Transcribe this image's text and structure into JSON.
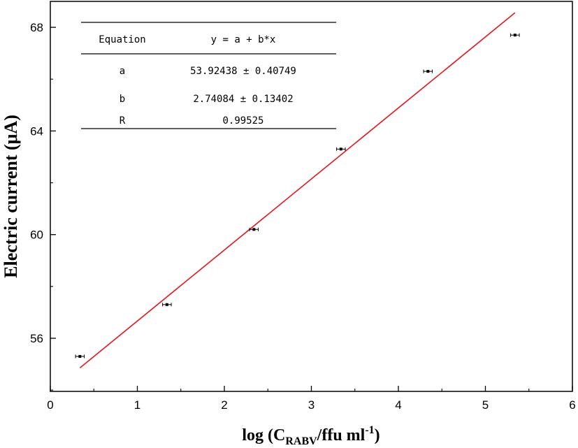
{
  "chart_data": {
    "type": "scatter",
    "xlabel": {
      "prefix": "log (C",
      "sub": "RABV",
      "mid": "/ffu ml",
      "sup": "-1",
      "suffix": ")"
    },
    "ylabel": "Electric current (μA)",
    "xlim": [
      0,
      6
    ],
    "ylim": [
      53.95,
      69
    ],
    "x_ticks": [
      0,
      1,
      2,
      3,
      4,
      5,
      6
    ],
    "y_ticks": [
      56,
      60,
      64,
      68
    ],
    "grid": false,
    "points": [
      {
        "x": 0.34,
        "y": 55.3,
        "err": 0.05
      },
      {
        "x": 1.34,
        "y": 57.3,
        "err": 0.05
      },
      {
        "x": 2.34,
        "y": 60.2,
        "err": 0.05
      },
      {
        "x": 3.34,
        "y": 63.3,
        "err": 0.05
      },
      {
        "x": 4.34,
        "y": 66.3,
        "err": 0.05
      },
      {
        "x": 5.34,
        "y": 67.7,
        "err": 0.05
      }
    ],
    "fit": {
      "a": 53.92438,
      "b": 2.74084,
      "x_range": [
        0.34,
        5.34
      ],
      "color": "#e8141b"
    },
    "fit_table": {
      "header": [
        "Equation",
        "y = a + b*x"
      ],
      "rows": [
        [
          "a",
          "53.92438 ± 0.40749"
        ],
        [
          "b",
          "2.74084 ± 0.13402"
        ],
        [
          "R",
          "0.99525"
        ]
      ]
    }
  }
}
